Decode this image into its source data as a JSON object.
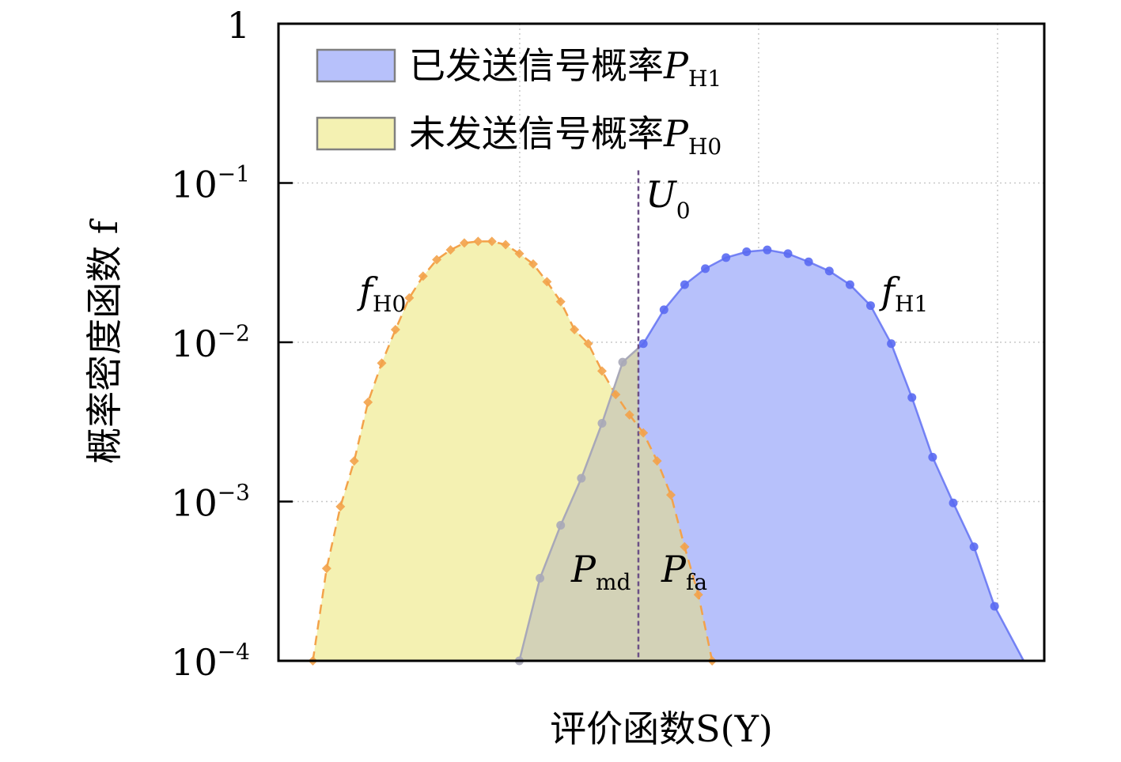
{
  "chart_data": {
    "type": "area",
    "xlabel": "评价函数S(Y)",
    "ylabel": "概率密度函数 f",
    "y_scale": "log",
    "ylim": [
      0.0001,
      1
    ],
    "y_ticks": [
      {
        "value": 1,
        "label": "1",
        "exp": ""
      },
      {
        "value": 0.1,
        "label": "10",
        "exp": "−1"
      },
      {
        "value": 0.01,
        "label": "10",
        "exp": "−2"
      },
      {
        "value": 0.001,
        "label": "10",
        "exp": "−3"
      },
      {
        "value": 0.0001,
        "label": "10",
        "exp": "−4"
      }
    ],
    "x_tick_labels": [],
    "grid": true,
    "legend_placement": "top-left",
    "threshold": {
      "label": "U",
      "sub": "0",
      "x": 0.47
    },
    "colors": {
      "h1_fill": "#b7c1fb",
      "h1_line": "#5a6af2",
      "h0_fill": "#f4f1b2",
      "h0_line": "#f3a24a",
      "overlap_fill": "#d3d2b7",
      "overlap_line": "#a8a8b8",
      "threshold": "#6b4f86"
    },
    "series": [
      {
        "name": "已发送信号概率",
        "legend_symbol": "P",
        "legend_sub": "H1",
        "curve_label": "f",
        "curve_label_sub": "H1",
        "marker": "circle",
        "x": [
          0.3145,
          0.3415,
          0.3685,
          0.3955,
          0.4225,
          0.4494,
          0.4764,
          0.5034,
          0.5304,
          0.5574,
          0.5844,
          0.6113,
          0.6383,
          0.6653,
          0.6923,
          0.7193,
          0.7463,
          0.7732,
          0.8002,
          0.8272,
          0.8542,
          0.8812,
          0.9082,
          0.9351
        ],
        "y": [
          0.0001,
          0.00033,
          0.00071,
          0.0014,
          0.0031,
          0.0075,
          0.0098,
          0.016,
          0.023,
          0.029,
          0.034,
          0.037,
          0.038,
          0.036,
          0.032,
          0.028,
          0.023,
          0.017,
          0.0098,
          0.0045,
          0.0019,
          0.00098,
          0.00052,
          0.00022
        ]
      },
      {
        "name": "未发送信号概率",
        "legend_symbol": "P",
        "legend_sub": "H0",
        "curve_label": "f",
        "curve_label_sub": "H0",
        "marker": "diamond",
        "x": [
          0.0449,
          0.0629,
          0.0809,
          0.0989,
          0.1169,
          0.1348,
          0.1528,
          0.1708,
          0.1888,
          0.2067,
          0.2247,
          0.2427,
          0.2607,
          0.2787,
          0.2966,
          0.3146,
          0.3326,
          0.3506,
          0.3685,
          0.3865,
          0.4045,
          0.4225,
          0.4404,
          0.4584,
          0.4764,
          0.4944,
          0.5124,
          0.5303,
          0.5483,
          0.5663
        ],
        "y": [
          0.0001,
          0.00038,
          0.00093,
          0.0018,
          0.0042,
          0.0074,
          0.012,
          0.019,
          0.026,
          0.033,
          0.038,
          0.042,
          0.043,
          0.043,
          0.041,
          0.036,
          0.031,
          0.024,
          0.018,
          0.012,
          0.0098,
          0.0066,
          0.0047,
          0.0035,
          0.0027,
          0.0018,
          0.0011,
          0.00052,
          0.00026,
          0.0001
        ]
      }
    ],
    "region_labels": [
      {
        "label": "P",
        "sub": "md"
      },
      {
        "label": "P",
        "sub": "fa"
      }
    ]
  }
}
